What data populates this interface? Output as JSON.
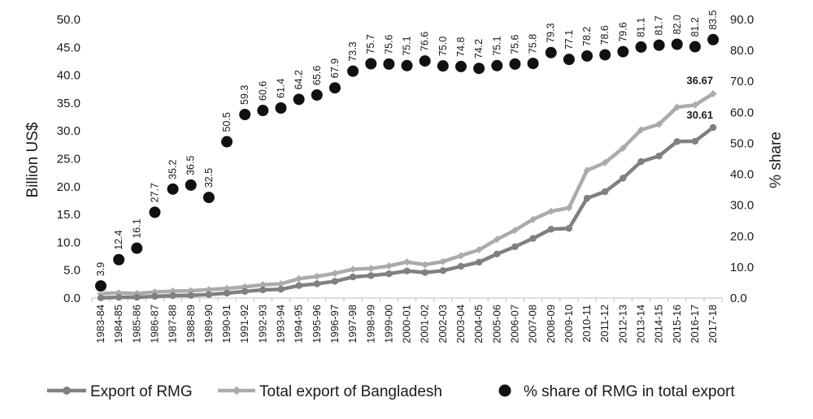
{
  "chart_data": {
    "type": "line",
    "title": "",
    "ylabel": "Billion US$",
    "y2label": "% share",
    "ylim": [
      0,
      50
    ],
    "y2lim": [
      0,
      90
    ],
    "yticks": [
      "0.0",
      "5.0",
      "10.0",
      "15.0",
      "20.0",
      "25.0",
      "30.0",
      "35.0",
      "40.0",
      "45.0",
      "50.0"
    ],
    "y2ticks": [
      "0.0",
      "10.0",
      "20.0",
      "30.0",
      "40.0",
      "50.0",
      "60.0",
      "70.0",
      "80.0",
      "90.0"
    ],
    "grid": false,
    "legend_position": "bottom",
    "categories": [
      "1983-84",
      "1984-85",
      "1985-86",
      "1986-87",
      "1987-88",
      "1988-89",
      "1989-90",
      "1990-91",
      "1991-92",
      "1992-93",
      "1993-94",
      "1994-95",
      "1995-96",
      "1996-97",
      "1997-98",
      "1998-99",
      "1999-00",
      "2000-01",
      "2001-02",
      "2002-03",
      "2003-04",
      "2004-05",
      "2005-06",
      "2006-07",
      "2007-08",
      "2008-09",
      "2009-10",
      "2010-11",
      "2011-12",
      "2012-13",
      "2013-14",
      "2014-15",
      "2015-16",
      "2016-17",
      "2017-18"
    ],
    "series": [
      {
        "name": "Export of RMG",
        "axis": "left",
        "color": "#808080",
        "marker": "circle",
        "values": [
          0.03,
          0.12,
          0.13,
          0.3,
          0.43,
          0.47,
          0.62,
          0.87,
          1.18,
          1.45,
          1.56,
          2.23,
          2.55,
          3.0,
          3.78,
          4.02,
          4.35,
          4.86,
          4.58,
          4.91,
          5.69,
          6.42,
          7.9,
          9.21,
          10.7,
          12.35,
          12.5,
          17.91,
          19.09,
          21.52,
          24.49,
          25.49,
          28.09,
          28.15,
          30.61
        ],
        "end_label": "30.61"
      },
      {
        "name": "Total export of Bangladesh",
        "axis": "left",
        "color": "#ababab",
        "marker": "diamond",
        "values": [
          0.81,
          0.93,
          0.8,
          1.07,
          1.23,
          1.29,
          1.52,
          1.72,
          2.0,
          2.38,
          2.53,
          3.47,
          3.88,
          4.42,
          5.16,
          5.31,
          5.75,
          6.47,
          5.98,
          6.55,
          7.6,
          8.65,
          10.53,
          12.18,
          14.11,
          15.57,
          16.2,
          22.92,
          24.3,
          26.92,
          30.18,
          31.2,
          34.26,
          34.65,
          36.67
        ],
        "end_label": "36.67"
      },
      {
        "name": "% share of RMG in total export",
        "axis": "right",
        "color": "#111111",
        "marker": "dot",
        "values": [
          3.9,
          12.4,
          16.1,
          27.7,
          35.2,
          36.5,
          32.5,
          50.5,
          59.3,
          60.6,
          61.4,
          64.2,
          65.6,
          67.9,
          73.3,
          75.7,
          75.6,
          75.1,
          76.6,
          75.0,
          74.8,
          74.2,
          75.1,
          75.6,
          75.8,
          79.3,
          77.1,
          78.2,
          78.6,
          79.6,
          81.1,
          81.7,
          82.0,
          81.2,
          83.5
        ],
        "labels": [
          "3.9",
          "12.4",
          "16.1",
          "27.7",
          "35.2",
          "36.5",
          "32.5",
          "50.5",
          "59.3",
          "60.6",
          "61.4",
          "64.2",
          "65.6",
          "67.9",
          "73.3",
          "75.7",
          "75.6",
          "75.1",
          "76.6",
          "75.0",
          "74.8",
          "74.2",
          "75.1",
          "75.6",
          "75.8",
          "79.3",
          "77.1",
          "78.2",
          "78.6",
          "79.6",
          "81.1",
          "81.7",
          "82.0",
          "81.2",
          "83.5"
        ]
      }
    ]
  }
}
